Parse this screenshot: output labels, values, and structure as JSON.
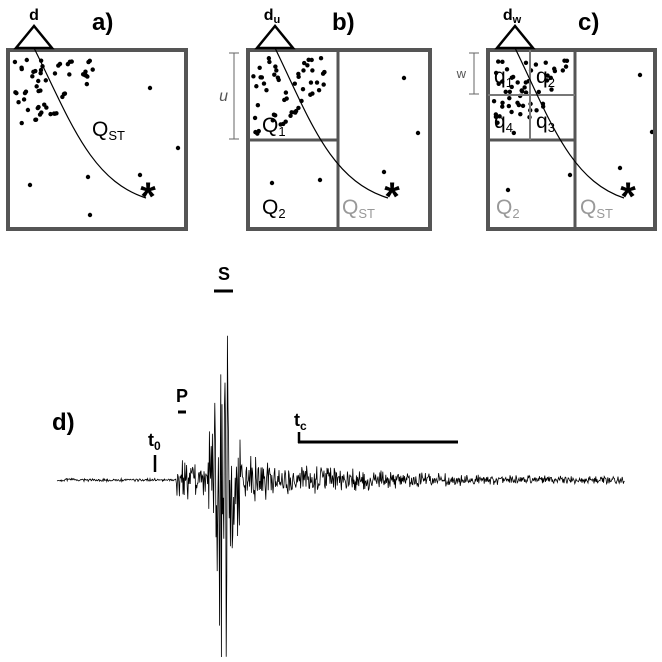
{
  "panel_a": {
    "label": "a)",
    "station": "d",
    "region": {
      "main": "Q",
      "sub": "ST"
    }
  },
  "panel_b": {
    "label": "b)",
    "station": {
      "main": "d",
      "sub": "u"
    },
    "size": "u",
    "regions": [
      {
        "main": "Q",
        "sub": "1"
      },
      {
        "main": "Q",
        "sub": "2"
      },
      {
        "main": "Q",
        "sub": "ST"
      }
    ]
  },
  "panel_c": {
    "label": "c)",
    "station": {
      "main": "d",
      "sub": "w"
    },
    "size": "w",
    "cells": [
      {
        "main": "q",
        "sub": "1"
      },
      {
        "main": "q",
        "sub": "2"
      },
      {
        "main": "q",
        "sub": "4"
      },
      {
        "main": "q",
        "sub": "3"
      }
    ],
    "regions": [
      {
        "main": "Q",
        "sub": "2"
      },
      {
        "main": "Q",
        "sub": "ST"
      }
    ]
  },
  "panel_d": {
    "label": "d)",
    "phases": [
      "P",
      "S"
    ],
    "t0": {
      "main": "t",
      "sub": "0"
    },
    "tc": {
      "main": "t",
      "sub": "c"
    }
  }
}
